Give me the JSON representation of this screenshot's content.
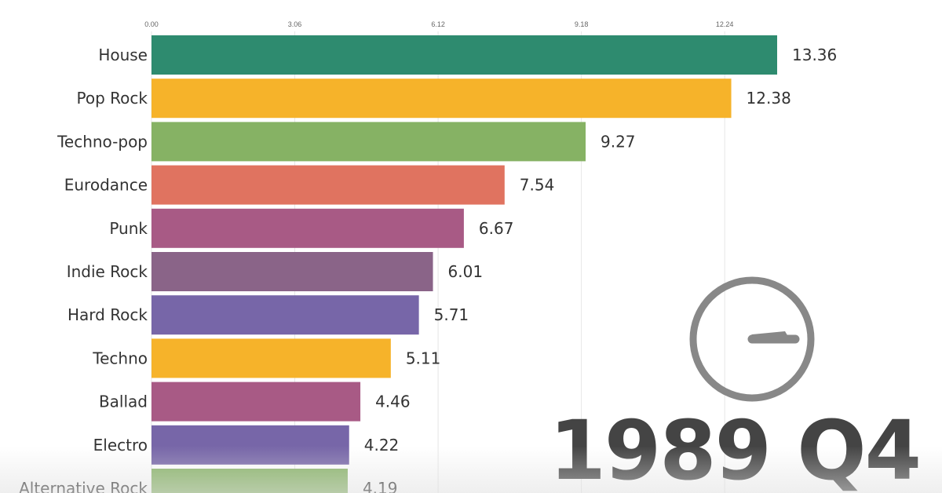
{
  "chart_data": {
    "type": "bar",
    "orientation": "horizontal",
    "title": "",
    "xlabel": "",
    "ylabel": "",
    "period": "1989 Q4",
    "xlim": [
      0,
      13.36
    ],
    "ticks": [
      "0.00",
      "3.06",
      "6.12",
      "9.18",
      "12.24"
    ],
    "tick_values": [
      0,
      3.06,
      6.12,
      9.18,
      12.24
    ],
    "categories": [
      "House",
      "Pop Rock",
      "Techno-pop",
      "Eurodance",
      "Punk",
      "Indie Rock",
      "Hard Rock",
      "Techno",
      "Ballad",
      "Electro",
      "Alternative Rock"
    ],
    "values": [
      13.36,
      12.38,
      9.27,
      7.54,
      6.67,
      6.01,
      5.71,
      5.11,
      4.46,
      4.22,
      4.19
    ],
    "value_labels": [
      "13.36",
      "12.38",
      "9.27",
      "7.54",
      "6.67",
      "6.01",
      "5.71",
      "5.11",
      "4.46",
      "4.22",
      "4.19"
    ],
    "colors": [
      "#2e8b6f",
      "#f6b32a",
      "#86b264",
      "#e07360",
      "#a85a85",
      "#8a6488",
      "#7766a8",
      "#f6b32a",
      "#a85a85",
      "#7766a8",
      "#86b264"
    ],
    "grid": true
  },
  "clock": {
    "icon": "clock-icon",
    "ring_color": "#888888",
    "hand_color": "#888888"
  }
}
